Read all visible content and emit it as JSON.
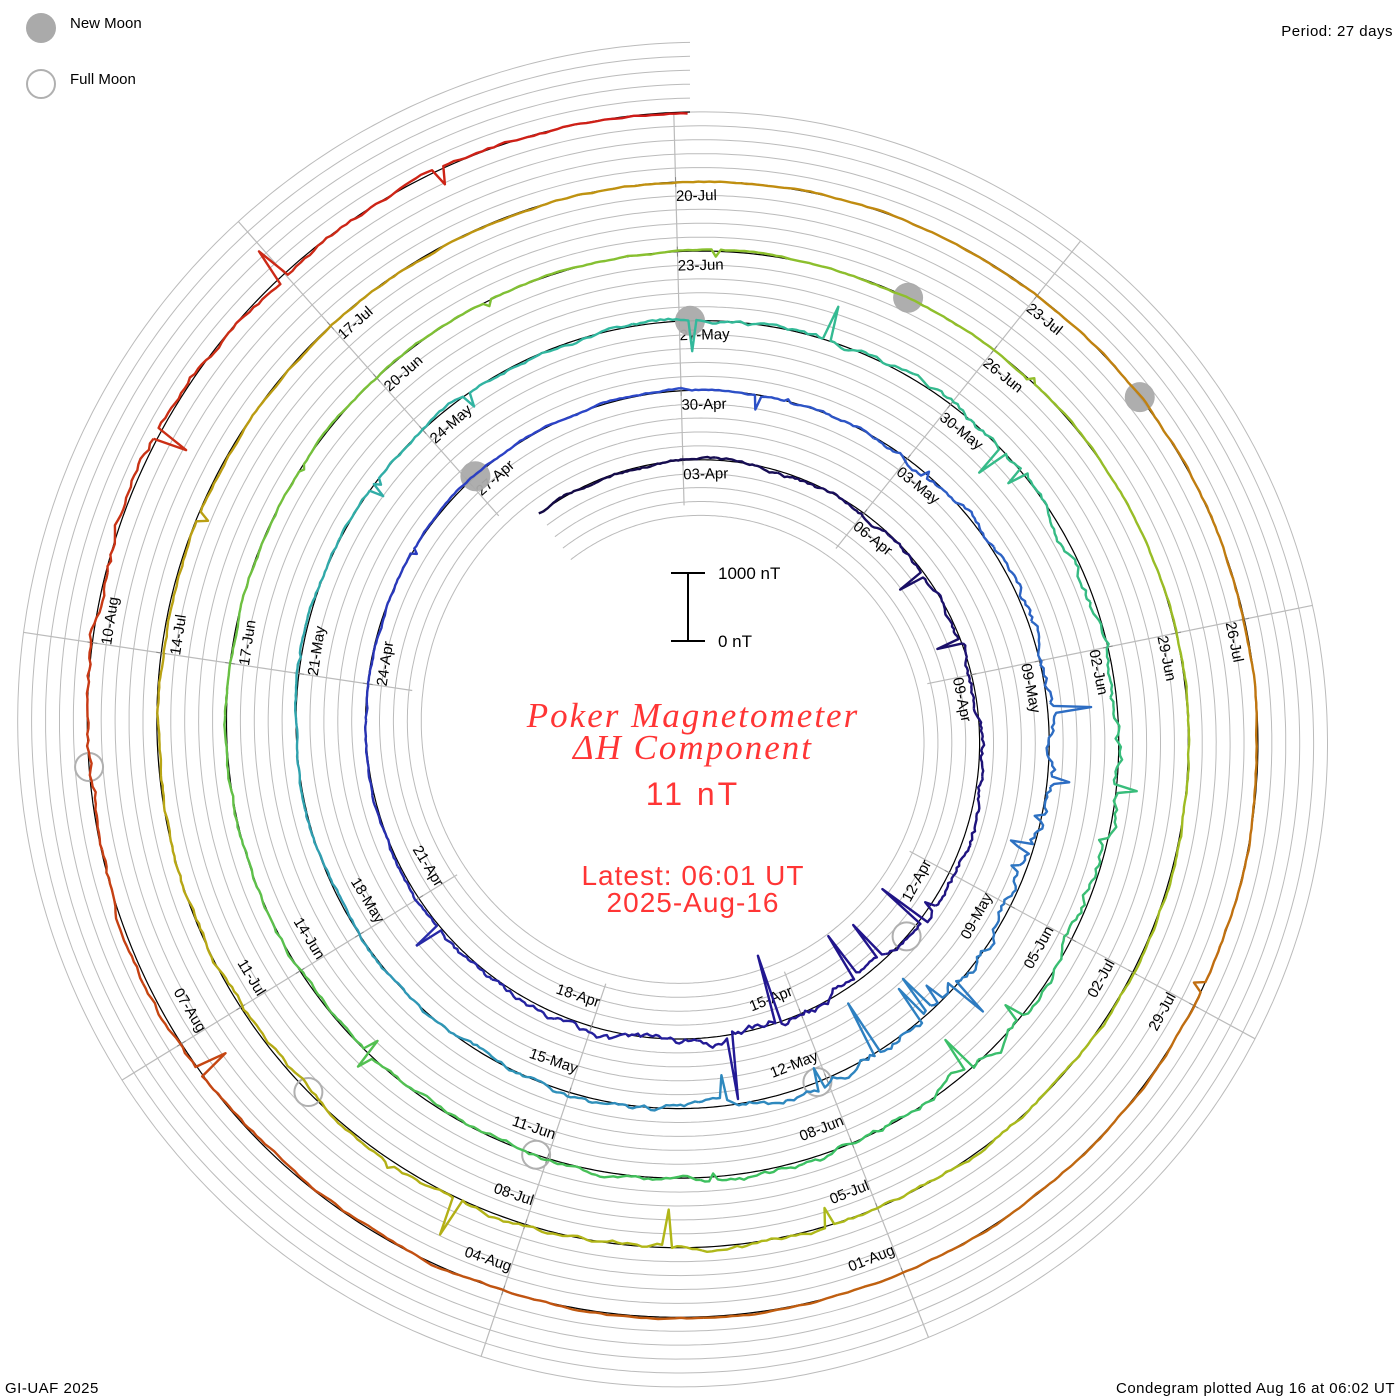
{
  "legend": {
    "new_moon_label": "New Moon",
    "full_moon_label": "Full Moon"
  },
  "period_text": "Period: 27 days",
  "footer_left": "GI-UAF 2025",
  "footer_right": "Condegram plotted Aug 16 at 06:02 UT",
  "colors": {
    "accent_text": "#ff3535",
    "new_moon": "#aaaaaa",
    "full_moon": "#b0b0b0",
    "grid": "#bbbbbb",
    "trace_gradient": [
      "#140a45",
      "#221690",
      "#2c44c8",
      "#2e86c0",
      "#32b8a0",
      "#3cc060",
      "#88c030",
      "#b0b818",
      "#c09010",
      "#c05a10",
      "#d01818"
    ]
  },
  "chart_data": {
    "type": "line",
    "subtype": "spiral condegram",
    "title_line1": "Poker Magnetometer",
    "title_line2": "ΔH Component",
    "current_value": "11 nT",
    "latest_line1": "Latest: 06:01 UT",
    "latest_line2": "2025-Aug-16",
    "scale_top_label": "1000 nT",
    "scale_bottom_label": "0 nT",
    "scale_nT": [
      0,
      1000
    ],
    "period_days": 27,
    "turns": 5,
    "start_day_offset": -2.6,
    "end_day_offset": 135,
    "date_labels": [
      "03-Apr",
      "06-Apr",
      "09-Apr",
      "12-Apr",
      "15-Apr",
      "18-Apr",
      "21-Apr",
      "24-Apr",
      "27-Apr",
      "30-Apr",
      "03-May",
      "09-May",
      "09-May",
      "12-May",
      "15-May",
      "18-May",
      "21-May",
      "24-May",
      "27-May",
      "30-May",
      "02-Jun",
      "05-Jun",
      "08-Jun",
      "11-Jun",
      "14-Jun",
      "17-Jun",
      "20-Jun",
      "23-Jun",
      "26-Jun",
      "29-Jun",
      "02-Jul",
      "05-Jul",
      "08-Jul",
      "11-Jul",
      "14-Jul",
      "17-Jul",
      "20-Jul",
      "23-Jul",
      "26-Jul",
      "29-Jul",
      "01-Aug",
      "04-Aug",
      "07-Aug",
      "10-Aug"
    ],
    "new_moon_days": [
      24,
      54,
      83,
      112
    ],
    "full_moon_days": [
      10,
      39,
      69,
      98,
      128
    ]
  }
}
